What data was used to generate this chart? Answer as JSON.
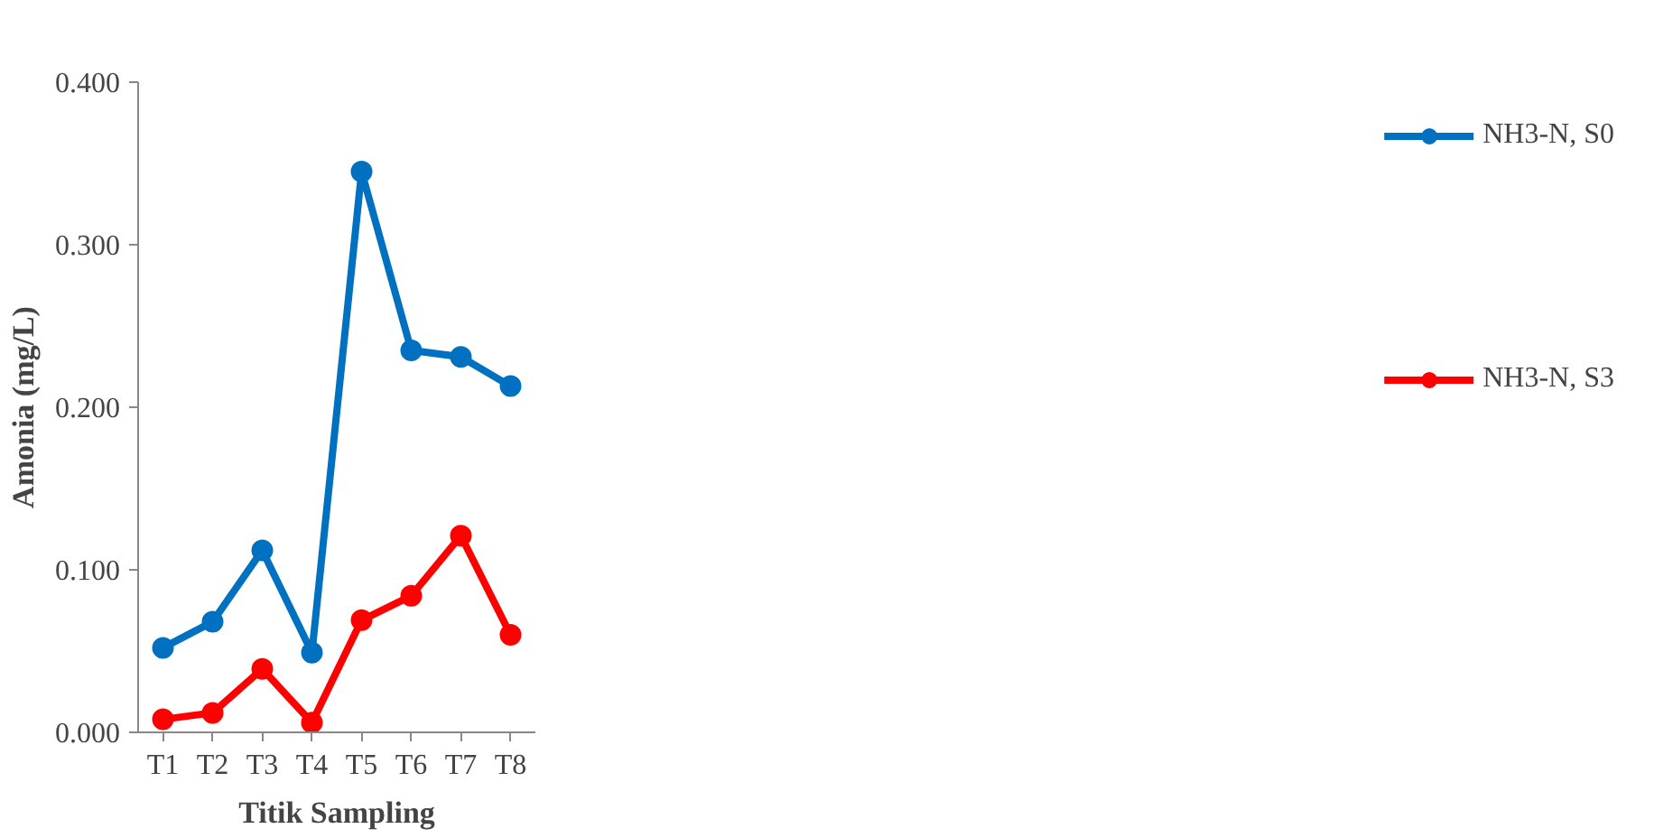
{
  "chart_data": {
    "type": "line",
    "xlabel": "Titik Sampling",
    "ylabel": "Amonia (mg/L)",
    "categories": [
      "T1",
      "T2",
      "T3",
      "T4",
      "T5",
      "T6",
      "T7",
      "T8"
    ],
    "series": [
      {
        "name": "NH3-N, S0",
        "color": "#0070c0",
        "values": [
          0.052,
          0.068,
          0.112,
          0.049,
          0.345,
          0.235,
          0.231,
          0.213
        ]
      },
      {
        "name": "NH3-N, S3",
        "color": "#ff0000",
        "values": [
          0.008,
          0.012,
          0.039,
          0.006,
          0.069,
          0.084,
          0.121,
          0.06
        ]
      }
    ],
    "ylim": [
      0,
      0.4
    ],
    "yticks": [
      {
        "value": 0,
        "label": "0.000"
      },
      {
        "value": 0.1,
        "label": "0.100"
      },
      {
        "value": 0.2,
        "label": "0.200"
      },
      {
        "value": 0.3,
        "label": "0.300"
      },
      {
        "value": 0.4,
        "label": "0.400"
      }
    ],
    "grid": false,
    "legend": "right",
    "marker": "circle",
    "line_style": "solid"
  }
}
